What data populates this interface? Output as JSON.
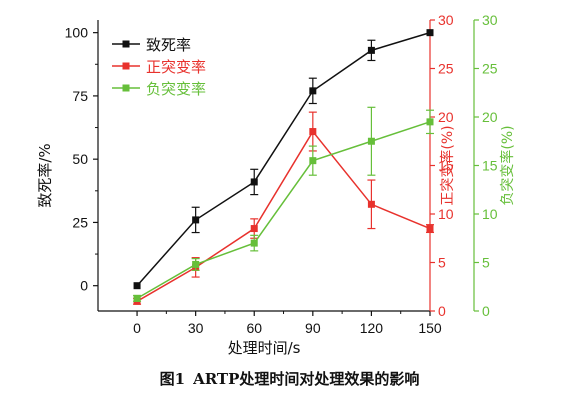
{
  "caption": {
    "label": "图1",
    "text": "ARTP处理时间对处理效果的影响"
  },
  "chart_data": {
    "type": "line",
    "x": [
      0,
      30,
      60,
      90,
      120,
      150
    ],
    "xlabel": "处理时间/s",
    "xlim": [
      -20,
      150
    ],
    "xticks": [
      0,
      30,
      60,
      90,
      120,
      150
    ],
    "axes": {
      "left": {
        "label": "致死率/%",
        "lim": [
          -10,
          105
        ],
        "ticks": [
          0,
          25,
          50,
          75,
          100
        ],
        "color": "#111111"
      },
      "right1": {
        "label": "正突变率(%)",
        "lim": [
          0,
          30
        ],
        "ticks": [
          0,
          5,
          10,
          15,
          20,
          25,
          30
        ],
        "color": "#e8322d"
      },
      "right2": {
        "label": "负突变率(%)",
        "lim": [
          0,
          30
        ],
        "ticks": [
          0,
          5,
          10,
          15,
          20,
          25,
          30
        ],
        "color": "#66bf3a"
      }
    },
    "series": [
      {
        "name": "致死率",
        "axis": "left",
        "color": "#111111",
        "values": [
          0,
          26,
          41,
          77,
          93,
          100
        ],
        "errors": [
          0,
          5,
          5,
          5,
          4,
          0
        ]
      },
      {
        "name": "正突变率",
        "axis": "right1",
        "color": "#e8322d",
        "values": [
          1.0,
          4.5,
          8.5,
          18.5,
          11.0,
          8.5
        ],
        "errors": [
          0.3,
          1.0,
          1.0,
          2.0,
          2.5,
          0.4
        ]
      },
      {
        "name": "负突变率",
        "axis": "right2",
        "color": "#66bf3a",
        "values": [
          1.3,
          4.8,
          7.0,
          15.5,
          17.5,
          19.5
        ],
        "errors": [
          0.3,
          0.6,
          0.8,
          1.5,
          3.5,
          1.2
        ]
      }
    ],
    "legend_position": "top-left"
  }
}
